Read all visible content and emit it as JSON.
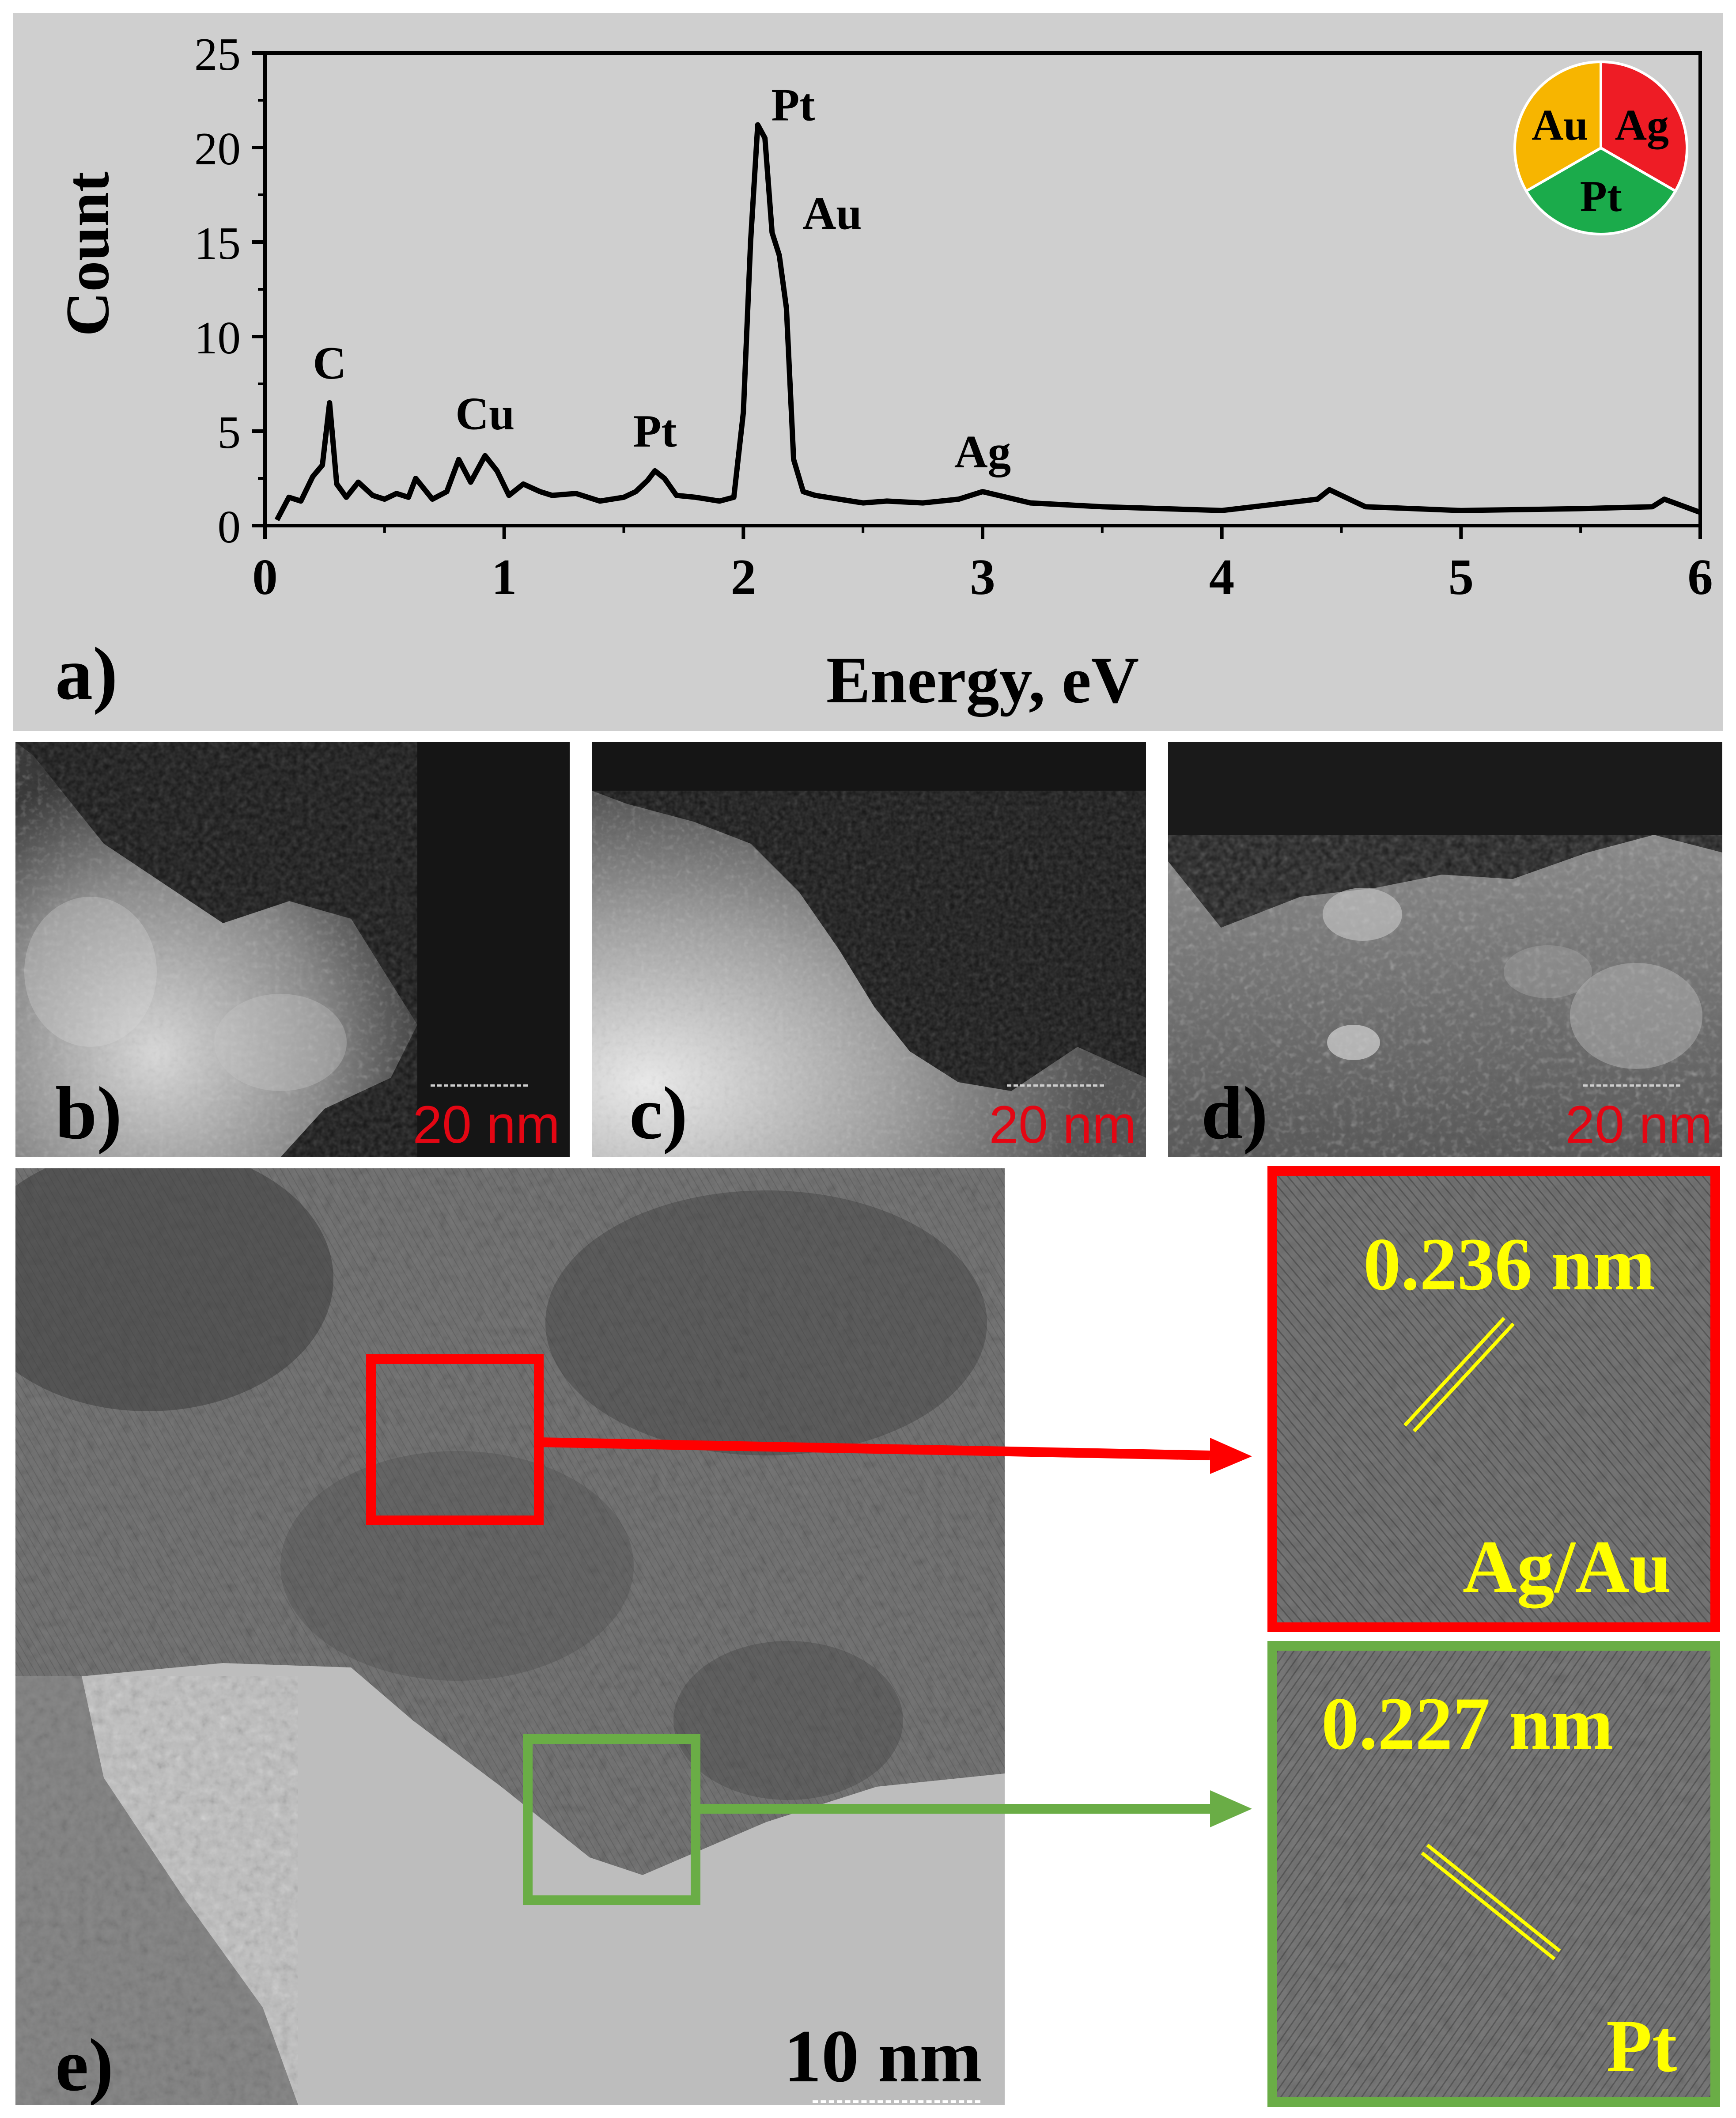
{
  "chart_data": {
    "type": "line",
    "xlabel": "Energy, eV",
    "ylabel": "Count",
    "xlim": [
      0,
      6
    ],
    "ylim": [
      0,
      25
    ],
    "xticks": [
      0,
      1,
      2,
      3,
      4,
      5,
      6
    ],
    "yticks": [
      0,
      5,
      10,
      15,
      20,
      25
    ],
    "grid": false,
    "series": [
      {
        "x": [
          0.05,
          0.1,
          0.15,
          0.2,
          0.24,
          0.27,
          0.3,
          0.34,
          0.39,
          0.45,
          0.5,
          0.55,
          0.6,
          0.63,
          0.7,
          0.76,
          0.81,
          0.86,
          0.92,
          0.97,
          1.02,
          1.08,
          1.15,
          1.2,
          1.3,
          1.4,
          1.5,
          1.55,
          1.6,
          1.63,
          1.67,
          1.72,
          1.8,
          1.9,
          1.96,
          2.0,
          2.03,
          2.06,
          2.09,
          2.12,
          2.15,
          2.18,
          2.21,
          2.25,
          2.3,
          2.4,
          2.5,
          2.6,
          2.75,
          2.9,
          3.0,
          3.2,
          3.5,
          4.0,
          4.4,
          4.45,
          4.6,
          5.0,
          5.5,
          5.8,
          5.85,
          6.0
        ],
        "y": [
          0.3,
          1.5,
          1.3,
          2.6,
          3.2,
          6.5,
          2.2,
          1.5,
          2.3,
          1.6,
          1.4,
          1.7,
          1.5,
          2.5,
          1.4,
          1.8,
          3.5,
          2.3,
          3.7,
          2.9,
          1.6,
          2.2,
          1.8,
          1.6,
          1.7,
          1.3,
          1.5,
          1.8,
          2.4,
          2.9,
          2.5,
          1.6,
          1.5,
          1.3,
          1.5,
          6.0,
          15.0,
          21.2,
          20.5,
          15.5,
          14.3,
          11.5,
          3.5,
          1.8,
          1.6,
          1.4,
          1.2,
          1.3,
          1.2,
          1.4,
          1.8,
          1.2,
          1.0,
          0.8,
          1.4,
          1.9,
          1.0,
          0.8,
          0.9,
          1.0,
          1.4,
          0.7
        ]
      }
    ],
    "annotations": [
      {
        "text": "C",
        "x": 0.27,
        "y": 6.5
      },
      {
        "text": "Cu",
        "x": 0.92,
        "y": 3.7
      },
      {
        "text": "Pt",
        "x": 1.63,
        "y": 2.9
      },
      {
        "text": "Pt",
        "x": 2.06,
        "y": 21.2
      },
      {
        "text": "Au",
        "x": 2.15,
        "y": 14.3
      },
      {
        "text": "Ag",
        "x": 3.0,
        "y": 1.8
      }
    ],
    "composition_legend": [
      {
        "label": "Au",
        "color": "#f7b500"
      },
      {
        "label": "Ag",
        "color": "#ee1c25"
      },
      {
        "label": "Pt",
        "color": "#1bab4b"
      }
    ]
  },
  "panels": {
    "a_label": "a)",
    "b_label": "b)",
    "c_label": "c)",
    "d_label": "d)",
    "e_label": "e)"
  },
  "scale_bars": {
    "b": "20 nm",
    "c": "20 nm",
    "d": "20 nm",
    "e": "10 nm"
  },
  "insets": {
    "agau_spacing": "0.236 nm",
    "agau_label": "Ag/Au",
    "pt_spacing": "0.227 nm",
    "pt_label": "Pt"
  },
  "colors": {
    "panel_a_background": "#cfcfcf",
    "highlight_red": "#ff0000",
    "highlight_green": "#6aad46",
    "inset_text_yellow": "#ffff00",
    "scale_text_red": "#e30613"
  }
}
